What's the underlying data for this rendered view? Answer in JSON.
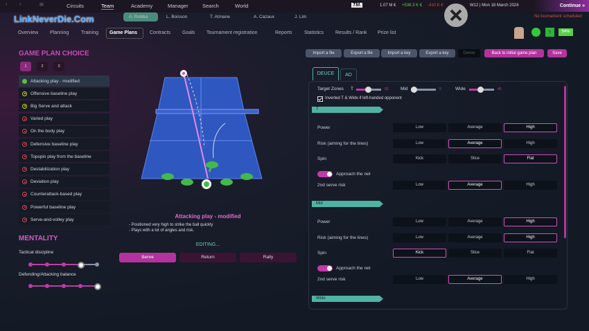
{
  "topnav": [
    "Circuits",
    "Team",
    "Academy",
    "Manager",
    "Search",
    "World"
  ],
  "players": [
    "A. Robba",
    "L. Boisson",
    "T. Atmane",
    "A. Cazaux",
    "J. Lim"
  ],
  "subnav": [
    "Overview",
    "Planning",
    "Training",
    "Game Plans",
    "Contracts",
    "Goals",
    "Tournament registration",
    "Reports",
    "Statistics",
    "Results / Rank",
    "Prize list"
  ],
  "finance": {
    "logo": "TM.",
    "balance": "1.07 M €",
    "plus": "+538.3 K €",
    "minus": "-410 K €",
    "date": "W12 | Mon 18 March 2024",
    "continue": "Continue »",
    "notice": "No tournament scheduled",
    "form": "94%"
  },
  "watermark": "LinkNeverDie.Com",
  "toolbar": [
    "Import a file",
    "Export a file",
    "Import a key",
    "Export a key",
    "Delete",
    "Back to initial game plan",
    "Save"
  ],
  "plan_choice": {
    "title": "GAME PLAN CHOICE",
    "slots": [
      "1",
      "2",
      "3"
    ],
    "items": [
      {
        "label": "Attacking play - modified",
        "state": "g"
      },
      {
        "label": "Offensive baseline play",
        "state": "y"
      },
      {
        "label": "Big Serve and attack",
        "state": "y"
      },
      {
        "label": "Varied play",
        "state": "r"
      },
      {
        "label": "On the body play",
        "state": "r"
      },
      {
        "label": "Defensive baseline play",
        "state": "r"
      },
      {
        "label": "Topspin play from the baseline",
        "state": "r"
      },
      {
        "label": "Destabilization play",
        "state": "r"
      },
      {
        "label": "Deviation play",
        "state": "r"
      },
      {
        "label": "Counterattack-based play",
        "state": "r"
      },
      {
        "label": "Powerful baseline play",
        "state": "r"
      },
      {
        "label": "Serve-and-volley play",
        "state": "r"
      }
    ]
  },
  "mentality": {
    "title": "MENTALITY",
    "tactical_label": "Tactical discipline",
    "tactical_level": 4,
    "balance_label": "Defending/Attacking balance",
    "balance_level": 5,
    "steps": 5
  },
  "plan": {
    "name": "Attacking play - modified",
    "desc1": "- Positioned very high to strike the ball quickly",
    "desc2": "- Plays with a lot of angles and risk.",
    "editing": "EDITING...",
    "tabs": [
      "Serve",
      "Return",
      "Rally"
    ]
  },
  "side_tabs": [
    "DEUCE",
    "AD"
  ],
  "targets": {
    "label": "Target Zones",
    "t": "T",
    "t_val": "50",
    "mid": "Mid",
    "mid_val": "5",
    "wide": "Wide",
    "wide_val": "45",
    "inverted": "Inverted T & Wide if left-handed opponent"
  },
  "sections": [
    {
      "name": "T",
      "rows": [
        {
          "label": "Power",
          "opts": [
            "Low",
            "Average",
            "High"
          ],
          "sel": 2
        },
        {
          "label": "Risk (aiming for the lines)",
          "opts": [
            "Low",
            "Average",
            "High"
          ],
          "sel": 1
        },
        {
          "label": "Spin",
          "opts": [
            "Kick",
            "Slice",
            "Flat"
          ],
          "sel": 2
        }
      ],
      "approach": "Approach the net",
      "second": {
        "label": "2nd serve risk",
        "opts": [
          "Low",
          "Average",
          "High"
        ],
        "sel": 1
      }
    },
    {
      "name": "Mid",
      "rows": [
        {
          "label": "Power",
          "opts": [
            "Low",
            "Average",
            "High"
          ],
          "sel": 2
        },
        {
          "label": "Risk (aiming for the lines)",
          "opts": [
            "Low",
            "Average",
            "High"
          ],
          "sel": 2
        },
        {
          "label": "Spin",
          "opts": [
            "Kick",
            "Slice",
            "Flat"
          ],
          "sel": 0
        }
      ],
      "approach": "Approach the net",
      "second": {
        "label": "2nd serve risk",
        "opts": [
          "Low",
          "Average",
          "High"
        ],
        "sel": 1
      }
    }
  ],
  "wide_section": "Wide"
}
